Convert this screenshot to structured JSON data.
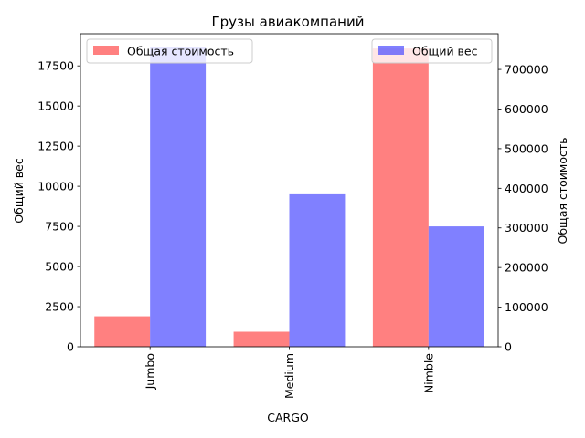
{
  "chart_data": {
    "type": "bar",
    "title": "Грузы авиакомпаний",
    "xlabel": "CARGO",
    "categories": [
      "Jumbo",
      "Medium",
      "Nimble"
    ],
    "left_axis": {
      "label": "Общий вес",
      "ylim": [
        0,
        19500
      ],
      "ticks": [
        0,
        2500,
        5000,
        7500,
        10000,
        12500,
        15000,
        17500
      ]
    },
    "right_axis": {
      "label": "Общая стоимость",
      "ylim": [
        0,
        790000
      ],
      "ticks": [
        0,
        100000,
        200000,
        300000,
        400000,
        500000,
        600000,
        700000
      ]
    },
    "series": [
      {
        "name": "Общая стоимость",
        "axis": "right",
        "color": "#ff4a4a",
        "values": [
          77000,
          38000,
          753000
        ]
      },
      {
        "name": "Общий вес",
        "axis": "left",
        "color": "#4a4aff",
        "values": [
          18700,
          9500,
          7500
        ]
      }
    ],
    "legends": [
      {
        "series": 0,
        "placement": "top-left"
      },
      {
        "series": 1,
        "placement": "top-right"
      }
    ],
    "grid": false
  }
}
